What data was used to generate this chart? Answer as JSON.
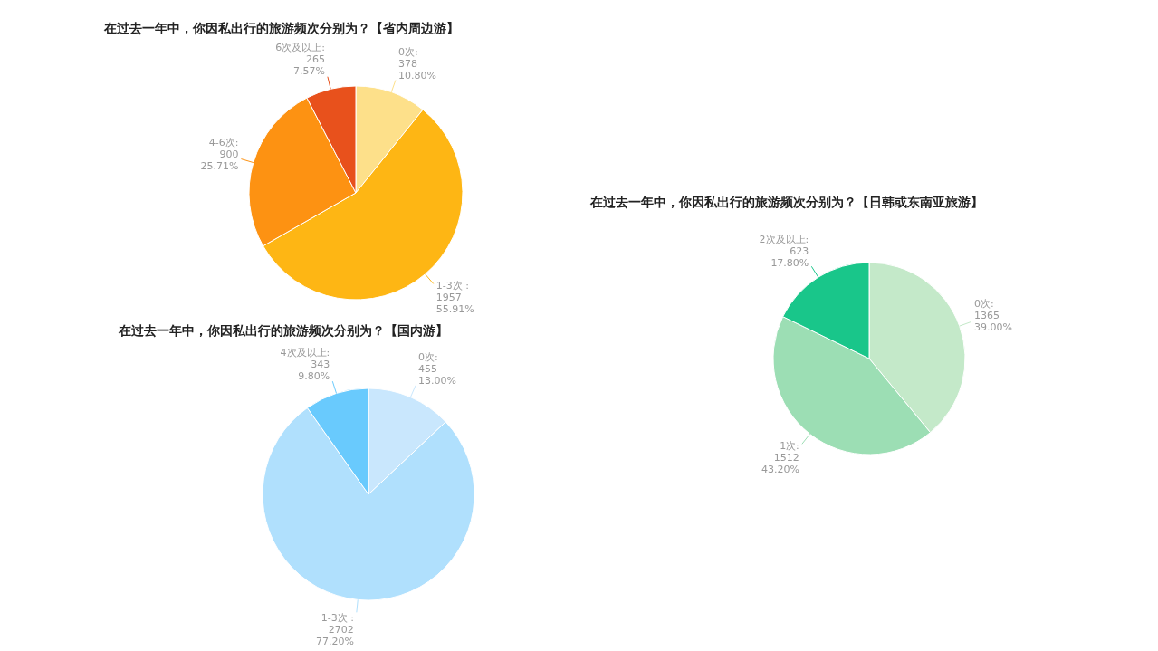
{
  "chart_data": [
    {
      "type": "pie",
      "title": "在过去一年中，你因私出行的旅游频次分别为？【省内周边游】",
      "categories": [
        "0次",
        "1-3次",
        "4-6次",
        "6次及以上"
      ],
      "values": [
        378,
        1957,
        900,
        265
      ],
      "colors": [
        "#fde08a",
        "#feb614",
        "#fd9212",
        "#e8511c"
      ],
      "value_labels": [
        ":\n378\n10.80%",
        " :\n1957\n55.91%",
        ":\n900\n25.71%",
        ":\n265\n7.57%"
      ]
    },
    {
      "type": "pie",
      "title": "在过去一年中，你因私出行的旅游频次分别为？【国内游】",
      "categories": [
        "0次",
        "1-3次",
        "4次及以上"
      ],
      "values": [
        455,
        2702,
        343
      ],
      "colors": [
        "#c9e7fd",
        "#b0e0fd",
        "#69cafd"
      ],
      "value_labels": [
        ":\n455\n13.00%",
        " :\n2702\n77.20%",
        ":\n343\n9.80%"
      ]
    },
    {
      "type": "pie",
      "title": "在过去一年中，你因私出行的旅游频次分别为？【日韩或东南亚旅游】",
      "categories": [
        "0次",
        "1次",
        "2次及以上"
      ],
      "values": [
        1365,
        1512,
        623
      ],
      "colors": [
        "#c4e9c9",
        "#9cdeb4",
        "#19c68a"
      ],
      "value_labels": [
        ":\n1365\n39.00%",
        ":\n1512\n43.20%",
        ":\n623\n17.80%"
      ]
    }
  ]
}
